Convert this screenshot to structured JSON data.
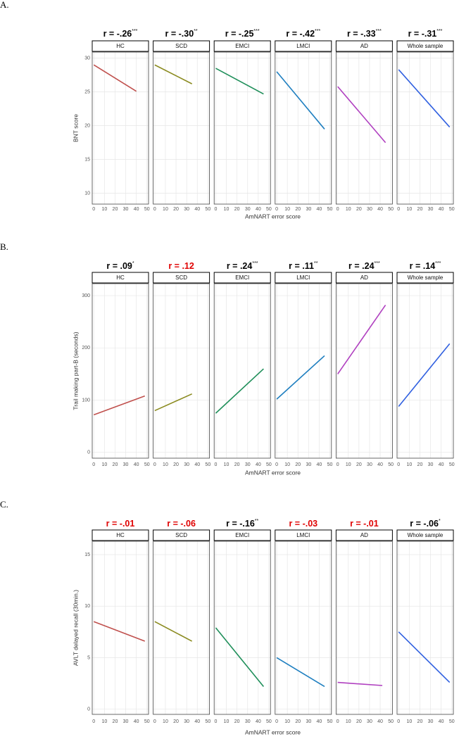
{
  "chart_data": [
    {
      "type": "facet-line",
      "label": "A.",
      "xlabel": "AmNART error score",
      "ylabel": "BNT score",
      "xlim": [
        -1.5,
        51.5
      ],
      "xticks": [
        0,
        10,
        20,
        30,
        40,
        50
      ],
      "ylim": [
        8.4,
        30.9
      ],
      "yticks": [
        10,
        15,
        20,
        25,
        30
      ],
      "grid": true,
      "facets": [
        {
          "name": "HC",
          "r": "r = -.26",
          "stars": "***",
          "r_color": "#000000",
          "color": "#c0504d",
          "x": [
            0,
            40
          ],
          "values": [
            29,
            25.1
          ]
        },
        {
          "name": "SCD",
          "r": "r = -.30",
          "stars": "**",
          "r_color": "#000000",
          "color": "#8b8b20",
          "x": [
            0,
            35
          ],
          "values": [
            29,
            26.2
          ]
        },
        {
          "name": "EMCI",
          "r": "r = -.25",
          "stars": "***",
          "r_color": "#000000",
          "color": "#1f8f5a",
          "x": [
            0,
            45
          ],
          "values": [
            28.5,
            24.7
          ]
        },
        {
          "name": "LMCI",
          "r": "r = -.42",
          "stars": "***",
          "r_color": "#000000",
          "color": "#1f7fc0",
          "x": [
            0,
            45
          ],
          "values": [
            28,
            19.5
          ]
        },
        {
          "name": "AD",
          "r": "r = -.33",
          "stars": "***",
          "r_color": "#000000",
          "color": "#b040c0",
          "x": [
            0,
            45
          ],
          "values": [
            25.8,
            17.5
          ]
        },
        {
          "name": "Whole sample",
          "r": "r = -.31",
          "stars": "***",
          "r_color": "#000000",
          "color": "#3060e0",
          "x": [
            0,
            48
          ],
          "values": [
            28.3,
            19.8
          ]
        }
      ]
    },
    {
      "type": "facet-line",
      "label": "B.",
      "xlabel": "AmNART error score",
      "ylabel": "Trail making part-B (seconds)",
      "xlim": [
        -1.5,
        51.5
      ],
      "xticks": [
        0,
        10,
        20,
        30,
        40,
        50
      ],
      "ylim": [
        -11,
        323
      ],
      "yticks": [
        0,
        100,
        200,
        300
      ],
      "grid": true,
      "facets": [
        {
          "name": "HC",
          "r": "r = .09",
          "stars": "*",
          "r_color": "#000000",
          "color": "#c0504d",
          "x": [
            0,
            48
          ],
          "values": [
            72,
            108
          ]
        },
        {
          "name": "SCD",
          "r": "r = .12",
          "r_color": "#e00000",
          "color": "#8b8b20",
          "x": [
            0,
            35
          ],
          "values": [
            80,
            112
          ]
        },
        {
          "name": "EMCI",
          "r": "r = .24",
          "stars": "***",
          "r_color": "#000000",
          "color": "#1f8f5a",
          "x": [
            0,
            45
          ],
          "values": [
            75,
            160
          ]
        },
        {
          "name": "LMCI",
          "r": "r = .11",
          "stars": "**",
          "r_color": "#000000",
          "color": "#1f7fc0",
          "x": [
            0,
            45
          ],
          "values": [
            102,
            185
          ]
        },
        {
          "name": "AD",
          "r": "r = .24",
          "stars": "***",
          "r_color": "#000000",
          "color": "#b040c0",
          "x": [
            0,
            45
          ],
          "values": [
            150,
            282
          ]
        },
        {
          "name": "Whole sample",
          "r": "r = .14",
          "stars": "***",
          "r_color": "#000000",
          "color": "#3060e0",
          "x": [
            0,
            48
          ],
          "values": [
            88,
            208
          ]
        }
      ]
    },
    {
      "type": "facet-line",
      "label": "C.",
      "xlabel": "AmNART error score",
      "ylabel": "AVLT delayed recall (30min.)",
      "xlim": [
        -1.5,
        51.5
      ],
      "xticks": [
        0,
        10,
        20,
        30,
        40,
        50
      ],
      "ylim": [
        -0.5,
        16.3
      ],
      "yticks": [
        0,
        5,
        10,
        15
      ],
      "grid": true,
      "facets": [
        {
          "name": "HC",
          "r": "r = -.01",
          "r_color": "#e00000",
          "color": "#c0504d",
          "x": [
            0,
            48
          ],
          "values": [
            8.5,
            6.6
          ]
        },
        {
          "name": "SCD",
          "r": "r = -.06",
          "r_color": "#e00000",
          "color": "#8b8b20",
          "x": [
            0,
            35
          ],
          "values": [
            8.5,
            6.6
          ]
        },
        {
          "name": "EMCI",
          "r": "r = -.16",
          "stars": "**",
          "r_color": "#000000",
          "color": "#1f8f5a",
          "x": [
            0,
            45
          ],
          "values": [
            7.9,
            2.2
          ]
        },
        {
          "name": "LMCI",
          "r": "r = -.03",
          "r_color": "#e00000",
          "color": "#1f7fc0",
          "x": [
            0,
            45
          ],
          "values": [
            5,
            2.2
          ]
        },
        {
          "name": "AD",
          "r": "r = -.01",
          "r_color": "#e00000",
          "color": "#b040c0",
          "x": [
            0,
            42
          ],
          "values": [
            2.6,
            2.3
          ]
        },
        {
          "name": "Whole sample",
          "r": "r = -.06",
          "stars": "*",
          "r_color": "#000000",
          "color": "#3060e0",
          "x": [
            0,
            48
          ],
          "values": [
            7.5,
            2.6
          ]
        }
      ]
    }
  ]
}
